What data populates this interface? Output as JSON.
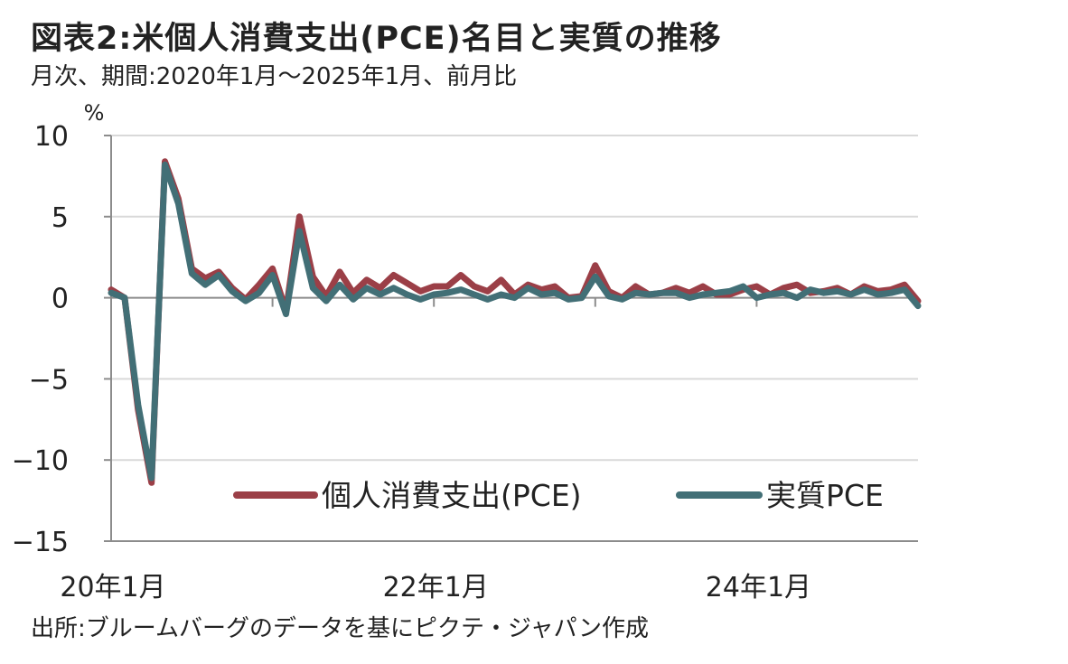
{
  "header": {
    "title": "図表2:米個人消費支出(PCE)名目と実質の推移",
    "subtitle": "月次、期間:2020年1月〜2025年1月、前月比"
  },
  "footer": {
    "source": "出所:ブルームバーグのデータを基にピクテ・ジャパン作成"
  },
  "colors": {
    "nominal": "#9b3f47",
    "real": "#426f76",
    "grid": "#d9d9d9",
    "axis": "#8c8c8c"
  },
  "chart_data": {
    "type": "line",
    "title": "",
    "ylabel": "%",
    "xlabel": "",
    "ylim": [
      -15,
      10
    ],
    "yticks": [
      10,
      5,
      0,
      -5,
      -10,
      -15
    ],
    "ytick_labels": [
      "10",
      "5",
      "0",
      "−5",
      "−10",
      "−15"
    ],
    "xtick_labels": [
      {
        "label": "20年1月",
        "x": "2020-01"
      },
      {
        "label": "22年1月",
        "x": "2022-01"
      },
      {
        "label": "24年1月",
        "x": "2024-01"
      }
    ],
    "grid": true,
    "legend_position": "bottom-right",
    "x": [
      "2020-01",
      "2020-02",
      "2020-03",
      "2020-04",
      "2020-05",
      "2020-06",
      "2020-07",
      "2020-08",
      "2020-09",
      "2020-10",
      "2020-11",
      "2020-12",
      "2021-01",
      "2021-02",
      "2021-03",
      "2021-04",
      "2021-05",
      "2021-06",
      "2021-07",
      "2021-08",
      "2021-09",
      "2021-10",
      "2021-11",
      "2021-12",
      "2022-01",
      "2022-02",
      "2022-03",
      "2022-04",
      "2022-05",
      "2022-06",
      "2022-07",
      "2022-08",
      "2022-09",
      "2022-10",
      "2022-11",
      "2022-12",
      "2023-01",
      "2023-02",
      "2023-03",
      "2023-04",
      "2023-05",
      "2023-06",
      "2023-07",
      "2023-08",
      "2023-09",
      "2023-10",
      "2023-11",
      "2023-12",
      "2024-01",
      "2024-02",
      "2024-03",
      "2024-04",
      "2024-05",
      "2024-06",
      "2024-07",
      "2024-08",
      "2024-09",
      "2024-10",
      "2024-11",
      "2024-12",
      "2025-01"
    ],
    "series": [
      {
        "name": "個人消費支出(PCE)",
        "color": "#9b3f47",
        "values": [
          0.5,
          0.0,
          -6.9,
          -11.4,
          8.4,
          6.1,
          1.8,
          1.2,
          1.6,
          0.6,
          -0.1,
          0.8,
          1.8,
          -0.8,
          5.0,
          1.3,
          0.1,
          1.6,
          0.3,
          1.1,
          0.6,
          1.4,
          0.9,
          0.4,
          0.7,
          0.7,
          1.4,
          0.7,
          0.4,
          1.1,
          0.2,
          0.8,
          0.5,
          0.7,
          0.0,
          0.1,
          2.0,
          0.4,
          0.0,
          0.7,
          0.2,
          0.3,
          0.6,
          0.3,
          0.7,
          0.2,
          0.2,
          0.5,
          0.7,
          0.2,
          0.6,
          0.8,
          0.3,
          0.4,
          0.6,
          0.2,
          0.7,
          0.4,
          0.5,
          0.8,
          -0.2
        ]
      },
      {
        "name": "実質PCE",
        "color": "#426f76",
        "values": [
          0.3,
          0.0,
          -6.6,
          -11.1,
          8.2,
          5.8,
          1.5,
          0.8,
          1.4,
          0.4,
          -0.2,
          0.3,
          1.4,
          -1.0,
          4.1,
          0.6,
          -0.2,
          0.8,
          -0.1,
          0.6,
          0.2,
          0.6,
          0.2,
          -0.1,
          0.2,
          0.3,
          0.5,
          0.2,
          -0.1,
          0.2,
          0.0,
          0.6,
          0.2,
          0.3,
          -0.1,
          0.0,
          1.3,
          0.1,
          -0.1,
          0.3,
          0.2,
          0.3,
          0.3,
          0.0,
          0.2,
          0.3,
          0.4,
          0.7,
          0.0,
          0.2,
          0.3,
          0.0,
          0.5,
          0.3,
          0.4,
          0.2,
          0.5,
          0.2,
          0.3,
          0.5,
          -0.5
        ]
      }
    ]
  }
}
